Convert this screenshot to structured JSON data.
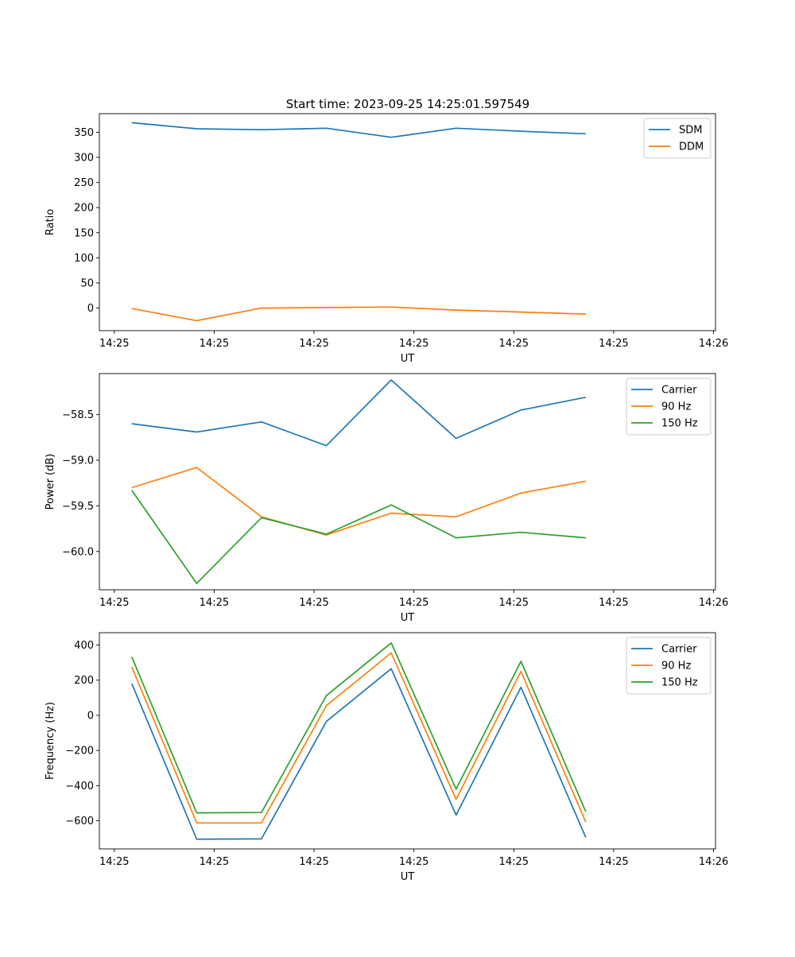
{
  "figure_title": "Start time: 2023-09-25 14:25:01.597549",
  "chart_data": [
    {
      "type": "line",
      "title": "Start time: 2023-09-25 14:25:01.597549",
      "xlabel": "UT",
      "ylabel": "Ratio",
      "xlim": [
        -0.5,
        9.0
      ],
      "ylim": [
        -45,
        387
      ],
      "x_ticks": [
        {
          "value": -0.27,
          "label": "14:25"
        },
        {
          "value": 1.27,
          "label": "14:25"
        },
        {
          "value": 2.81,
          "label": "14:25"
        },
        {
          "value": 4.35,
          "label": "14:25"
        },
        {
          "value": 5.89,
          "label": "14:25"
        },
        {
          "value": 7.43,
          "label": "14:25"
        },
        {
          "value": 8.97,
          "label": "14:26"
        }
      ],
      "y_ticks": [
        {
          "value": 350,
          "label": "350"
        },
        {
          "value": 300,
          "label": "300"
        },
        {
          "value": 250,
          "label": "250"
        },
        {
          "value": 200,
          "label": "200"
        },
        {
          "value": 150,
          "label": "150"
        },
        {
          "value": 100,
          "label": "100"
        },
        {
          "value": 50,
          "label": "50"
        },
        {
          "value": 0,
          "label": "0"
        }
      ],
      "x": [
        0,
        1,
        2,
        3,
        4,
        5,
        6,
        7
      ],
      "series": [
        {
          "name": "SDM",
          "color": "#1f77b4",
          "values": [
            369,
            357,
            355,
            358,
            340,
            358,
            352,
            347
          ]
        },
        {
          "name": "DDM",
          "color": "#ff7f0e",
          "values": [
            -1,
            -25,
            0,
            1,
            2,
            -4,
            -8,
            -12
          ]
        }
      ],
      "legend": "top-right"
    },
    {
      "type": "line",
      "title": "",
      "xlabel": "UT",
      "ylabel": "Power (dB)",
      "xlim": [
        -0.5,
        9.0
      ],
      "ylim": [
        -60.42,
        -58.05
      ],
      "x_ticks": [
        {
          "value": -0.27,
          "label": "14:25"
        },
        {
          "value": 1.27,
          "label": "14:25"
        },
        {
          "value": 2.81,
          "label": "14:25"
        },
        {
          "value": 4.35,
          "label": "14:25"
        },
        {
          "value": 5.89,
          "label": "14:25"
        },
        {
          "value": 7.43,
          "label": "14:25"
        },
        {
          "value": 8.97,
          "label": "14:26"
        }
      ],
      "y_ticks": [
        {
          "value": -58.5,
          "label": "−58.5"
        },
        {
          "value": -59.0,
          "label": "−59.0"
        },
        {
          "value": -59.5,
          "label": "−59.5"
        },
        {
          "value": -60.0,
          "label": "−60.0"
        }
      ],
      "x": [
        0,
        1,
        2,
        3,
        4,
        5,
        6,
        7
      ],
      "series": [
        {
          "name": "Carrier",
          "color": "#1f77b4",
          "values": [
            -58.6,
            -58.69,
            -58.58,
            -58.84,
            -58.12,
            -58.76,
            -58.45,
            -58.31
          ]
        },
        {
          "name": "90 Hz",
          "color": "#ff7f0e",
          "values": [
            -59.3,
            -59.08,
            -59.62,
            -59.82,
            -59.58,
            -59.62,
            -59.36,
            -59.23
          ]
        },
        {
          "name": "150 Hz",
          "color": "#2ca02c",
          "values": [
            -59.33,
            -60.35,
            -59.63,
            -59.81,
            -59.49,
            -59.85,
            -59.79,
            -59.85
          ]
        }
      ],
      "legend": "top-right"
    },
    {
      "type": "line",
      "title": "",
      "xlabel": "UT",
      "ylabel": "Frequency (Hz)",
      "xlim": [
        -0.5,
        9.0
      ],
      "ylim": [
        -760,
        470
      ],
      "x_ticks": [
        {
          "value": -0.27,
          "label": "14:25"
        },
        {
          "value": 1.27,
          "label": "14:25"
        },
        {
          "value": 2.81,
          "label": "14:25"
        },
        {
          "value": 4.35,
          "label": "14:25"
        },
        {
          "value": 5.89,
          "label": "14:25"
        },
        {
          "value": 7.43,
          "label": "14:25"
        },
        {
          "value": 8.97,
          "label": "14:26"
        }
      ],
      "y_ticks": [
        {
          "value": 400,
          "label": "400"
        },
        {
          "value": 200,
          "label": "200"
        },
        {
          "value": 0,
          "label": "0"
        },
        {
          "value": -200,
          "label": "−200"
        },
        {
          "value": -400,
          "label": "−400"
        },
        {
          "value": -600,
          "label": "−600"
        }
      ],
      "x": [
        0,
        1,
        2,
        3,
        4,
        5,
        6,
        7
      ],
      "series": [
        {
          "name": "Carrier",
          "color": "#1f77b4",
          "values": [
            180,
            -705,
            -703,
            -35,
            265,
            -568,
            160,
            -695
          ]
        },
        {
          "name": "90 Hz",
          "color": "#ff7f0e",
          "values": [
            275,
            -612,
            -612,
            55,
            355,
            -478,
            250,
            -607
          ]
        },
        {
          "name": "150 Hz",
          "color": "#2ca02c",
          "values": [
            332,
            -555,
            -553,
            112,
            412,
            -420,
            307,
            -548
          ]
        }
      ],
      "legend": "top-right"
    }
  ]
}
